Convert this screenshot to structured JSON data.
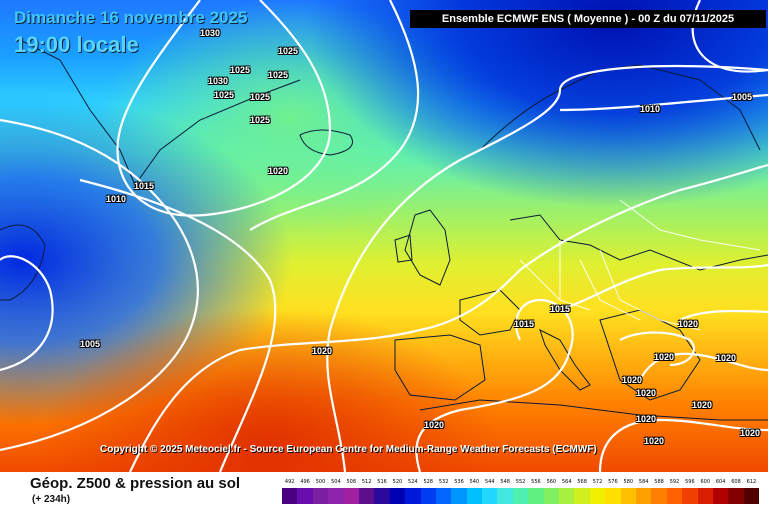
{
  "header": {
    "date": "Dimanche 16 novembre 2025",
    "time": "19:00 locale",
    "model": "Ensemble ECMWF ENS  ( Moyenne )  - 00 Z du 07/11/2025"
  },
  "copyright": "Copyright © 2025 Meteociel.fr - Source European Centre for Medium-Range Weather Forecasts (ECMWF)",
  "footer": {
    "title": "Géop. Z500 & pression au sol",
    "subtitle": "(+ 234h)"
  },
  "legend": {
    "values": [
      "492",
      "496",
      "500",
      "504",
      "508",
      "512",
      "516",
      "520",
      "524",
      "528",
      "532",
      "536",
      "540",
      "544",
      "548",
      "552",
      "556",
      "560",
      "564",
      "568",
      "572",
      "576",
      "580",
      "584",
      "588",
      "592",
      "596",
      "600",
      "604",
      "608",
      "612"
    ],
    "colors": [
      "#4b0082",
      "#6a0dad",
      "#7b1fa2",
      "#8e24aa",
      "#a020a0",
      "#5d0f8c",
      "#2a0a9c",
      "#0000b4",
      "#0018d8",
      "#003cf0",
      "#0066ff",
      "#0096ff",
      "#00c0ff",
      "#20d8ff",
      "#40e8e0",
      "#50f0b0",
      "#60f080",
      "#80f060",
      "#a8f040",
      "#d0f020",
      "#f0f000",
      "#ffe000",
      "#ffc000",
      "#ffa000",
      "#ff8000",
      "#ff6000",
      "#f04000",
      "#d82000",
      "#b00000",
      "#800000",
      "#500000"
    ]
  },
  "isobars": [
    "1030",
    "1025",
    "1025",
    "1030",
    "1025",
    "1025",
    "1025",
    "1025",
    "1015",
    "1010",
    "1020",
    "1010",
    "1005",
    "1005",
    "1020",
    "1015",
    "1015",
    "1020",
    "1020",
    "1020",
    "1020",
    "1020",
    "1020",
    "1020",
    "1020",
    "1020",
    "1020"
  ]
}
